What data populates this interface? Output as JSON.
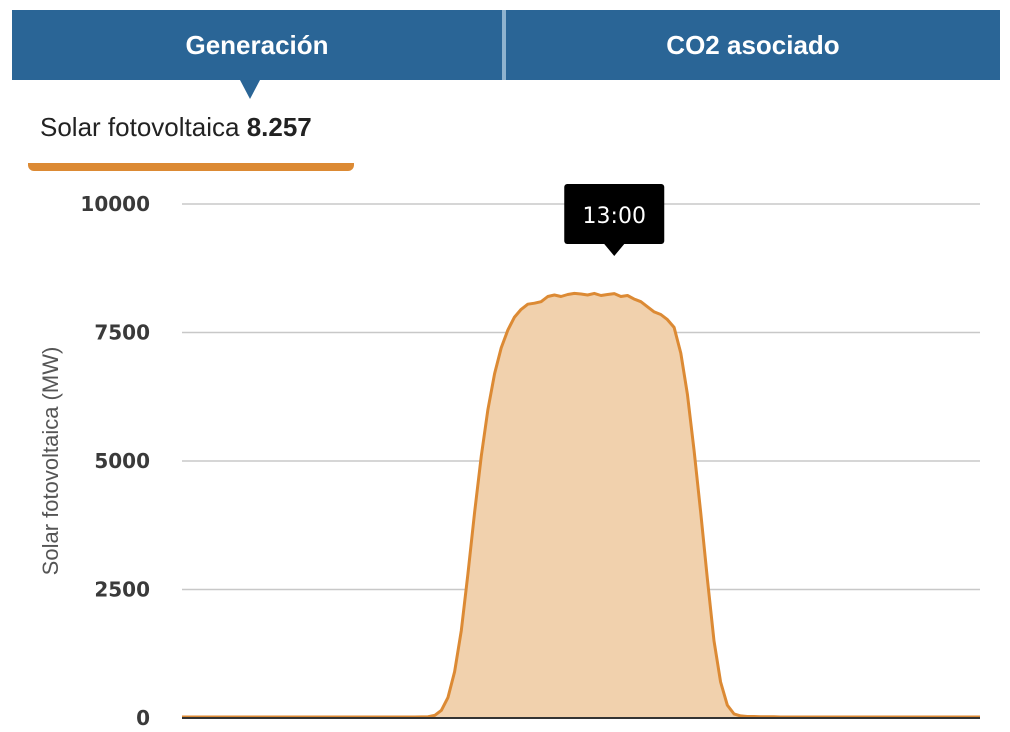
{
  "tabs": [
    {
      "label": "Generación",
      "active": true
    },
    {
      "label": "CO2 asociado",
      "active": false
    }
  ],
  "selection": {
    "label": "Solar fotovoltaica",
    "value": "8.257"
  },
  "colors": {
    "tab_bg": "#2a6596",
    "accent": "#dc8a34",
    "area_fill": "#f1d1ad"
  },
  "tooltip": {
    "label": "13:00",
    "x": 13.0
  },
  "chart_data": {
    "type": "area",
    "ylabel": "Solar fotovoltaica (MW)",
    "ylim": [
      0,
      10000
    ],
    "xlim": [
      0,
      24
    ],
    "yticks": [
      {
        "value": 0,
        "label": "0"
      },
      {
        "value": 2500,
        "label": "2500"
      },
      {
        "value": 5000,
        "label": "5000"
      },
      {
        "value": 7500,
        "label": "7500"
      },
      {
        "value": 10000,
        "label": "10000"
      }
    ],
    "grid": true,
    "series": [
      {
        "x": [
          0,
          2,
          4,
          6,
          7,
          7.4,
          7.6,
          7.8,
          8.0,
          8.2,
          8.4,
          8.6,
          8.8,
          9.0,
          9.2,
          9.4,
          9.6,
          9.8,
          10.0,
          10.2,
          10.4,
          10.6,
          10.8,
          11.0,
          11.2,
          11.4,
          11.6,
          11.8,
          12.0,
          12.2,
          12.4,
          12.6,
          12.8,
          13.0,
          13.2,
          13.4,
          13.6,
          13.8,
          14.0,
          14.2,
          14.4,
          14.6,
          14.8,
          15.0,
          15.2,
          15.4,
          15.6,
          15.8,
          16.0,
          16.2,
          16.4,
          16.6,
          16.8,
          17.0,
          17.2,
          17.4,
          17.6,
          17.8,
          18.0,
          18.5,
          19,
          20,
          21,
          22,
          23,
          24
        ],
        "y": [
          20,
          20,
          20,
          20,
          20,
          25,
          50,
          150,
          400,
          900,
          1700,
          2800,
          4000,
          5100,
          6000,
          6700,
          7200,
          7550,
          7800,
          7950,
          8050,
          8070,
          8100,
          8200,
          8230,
          8200,
          8240,
          8260,
          8250,
          8230,
          8260,
          8220,
          8240,
          8257,
          8200,
          8220,
          8150,
          8100,
          8000,
          7900,
          7850,
          7750,
          7600,
          7100,
          6300,
          5200,
          4000,
          2700,
          1500,
          700,
          250,
          80,
          40,
          30,
          30,
          25,
          25,
          25,
          20,
          20,
          20,
          20,
          20,
          20,
          20,
          20
        ]
      }
    ]
  }
}
